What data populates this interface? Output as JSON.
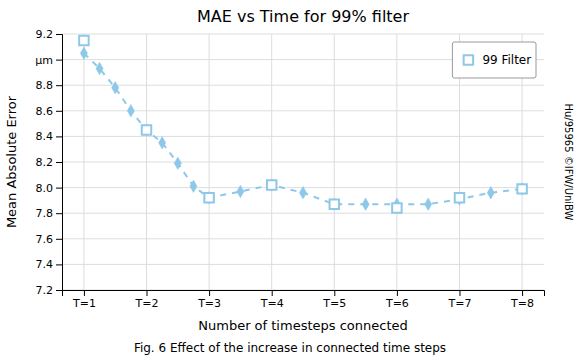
{
  "chart_data": {
    "type": "line",
    "title": "MAE vs Time for 99% filter",
    "xlabel": "Number of timesteps connected",
    "ylabel": "Mean Absolute Error",
    "series": [
      {
        "type": "line",
        "marker": "diamond",
        "line_style": "dashed",
        "color": "#8EC8E8",
        "x": [
          1.0,
          1.25,
          1.5,
          1.75,
          2.0,
          2.25,
          2.5,
          2.75,
          3.0,
          3.5,
          4.0,
          4.5,
          5.0,
          5.5,
          6.0,
          6.5,
          7.0,
          7.5,
          8.0
        ],
        "values": [
          9.05,
          8.93,
          8.78,
          8.6,
          8.45,
          8.35,
          8.19,
          8.01,
          7.92,
          7.97,
          8.02,
          7.96,
          7.87,
          7.87,
          7.87,
          7.87,
          7.91,
          7.96,
          7.99
        ]
      },
      {
        "name": "99 Filter",
        "type": "scatter",
        "marker": "square",
        "color": "#8EC8E8",
        "x": [
          1,
          2,
          3,
          4,
          5,
          6,
          7,
          8
        ],
        "values": [
          9.15,
          8.45,
          7.92,
          8.02,
          7.87,
          7.84,
          7.92,
          7.99
        ]
      }
    ],
    "xlim": [
      0.65,
      8.35
    ],
    "xticks": [
      {
        "value": 1,
        "label": "T=1"
      },
      {
        "value": 2,
        "label": "T=2"
      },
      {
        "value": 3,
        "label": "T=3"
      },
      {
        "value": 4,
        "label": "T=4"
      },
      {
        "value": 5,
        "label": "T=5"
      },
      {
        "value": 6,
        "label": "T=6"
      },
      {
        "value": 7,
        "label": "T=7"
      },
      {
        "value": 8,
        "label": "T=8"
      }
    ],
    "ylim": [
      7.2,
      9.2
    ],
    "yticks": [
      7.2,
      7.4,
      7.6,
      7.8,
      {
        "value": 8.0,
        "label": "8.0"
      },
      8.2,
      8.4,
      8.6,
      8.8,
      {
        "value": 9.0,
        "label": "μm"
      },
      9.2
    ],
    "grid": true,
    "legend": "upper right",
    "annotations": [
      "Fig. 6 Effect of the increase in connected time steps",
      "Hu/95965 ©IFW/UniBW"
    ]
  }
}
